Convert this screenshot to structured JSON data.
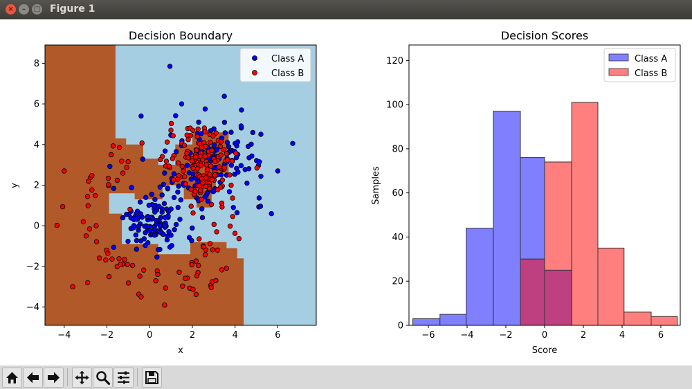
{
  "window": {
    "title": "Figure 1"
  },
  "toolbar": {
    "icons": [
      "home-icon",
      "back-arrow-icon",
      "forward-arrow-icon",
      "pan-icon",
      "zoom-icon",
      "configure-subplots-icon",
      "save-icon"
    ]
  },
  "colors": {
    "class_a": "#0000ff",
    "class_b": "#ff0000",
    "region_a": "#a6cee3",
    "region_b": "#b15928",
    "hist_a": "#8080ff",
    "hist_b": "#ff7f7f",
    "hist_overlap": "#bf4080"
  },
  "chart_data": [
    {
      "type": "scatter",
      "title": "Decision Boundary",
      "xlabel": "x",
      "ylabel": "y",
      "xlim": [
        -4.9,
        7.8
      ],
      "ylim": [
        -4.9,
        8.9
      ],
      "xticks": [
        "−4",
        "−2",
        "0",
        "2",
        "4",
        "6"
      ],
      "yticks": [
        "−4",
        "−2",
        "0",
        "2",
        "4",
        "6",
        "8"
      ],
      "legend_position": "top-right",
      "background": "decision regions (Class B region brown, Class A region light blue)",
      "series": [
        {
          "name": "Class A",
          "center": [
            1.5,
            2.0
          ],
          "approx_count": 250,
          "notable_points": [
            [
              0.95,
              7.85
            ],
            [
              6.7,
              4.05
            ],
            [
              6.0,
              2.7
            ],
            [
              -0.4,
              5.4
            ],
            [
              1.5,
              6.0
            ],
            [
              5.7,
              0.6
            ],
            [
              4.3,
              5.7
            ]
          ]
        },
        {
          "name": "Class B",
          "center": [
            1.5,
            1.5
          ],
          "approx_count": 250,
          "notable_points": [
            [
              -4.0,
              2.7
            ],
            [
              -3.6,
              -3.0
            ],
            [
              -2.9,
              -2.8
            ],
            [
              -1.9,
              -2.5
            ],
            [
              0.7,
              -3.9
            ],
            [
              -0.4,
              -3.5
            ],
            [
              3.1,
              -2.7
            ],
            [
              -1.8,
              3.5
            ]
          ]
        }
      ]
    },
    {
      "type": "bar",
      "title": "Decision Scores",
      "xlabel": "Score",
      "ylabel": "Samples",
      "xlim": [
        -7.0,
        7.0
      ],
      "ylim": [
        0,
        127
      ],
      "xticks": [
        "−6",
        "−4",
        "−2",
        "0",
        "2",
        "4",
        "6"
      ],
      "yticks": [
        "0",
        "20",
        "40",
        "60",
        "80",
        "100",
        "120"
      ],
      "legend_position": "top-right",
      "bin_edges": [
        -6.8,
        -5.4,
        -4.05,
        -2.65,
        -1.25,
        0.0,
        1.4,
        2.75,
        4.1,
        5.5,
        6.85
      ],
      "series": [
        {
          "name": "Class A",
          "counts": [
            3,
            5,
            44,
            97,
            76,
            25,
            0,
            0,
            0,
            0
          ]
        },
        {
          "name": "Class B",
          "counts": [
            0,
            0,
            0,
            0,
            30,
            74,
            101,
            35,
            6,
            4
          ]
        }
      ]
    }
  ]
}
